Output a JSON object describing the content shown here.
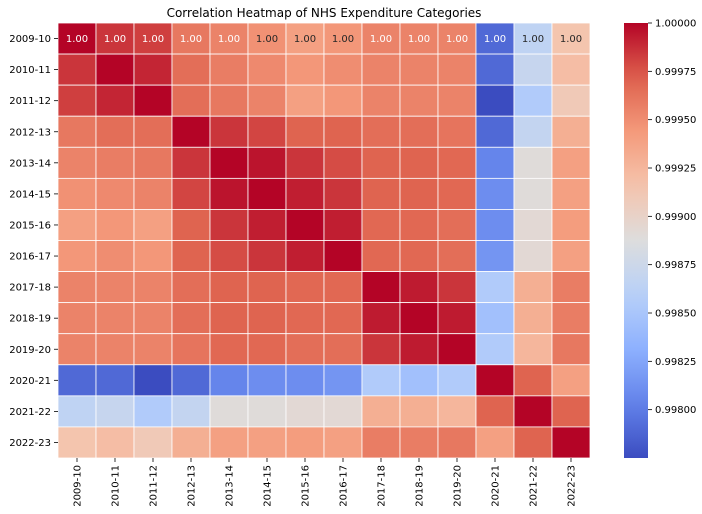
{
  "chart_data": {
    "type": "heatmap",
    "title": "Correlation Heatmap of NHS Expenditure Categories",
    "labels": [
      "2009-10",
      "2010-11",
      "2011-12",
      "2012-13",
      "2013-14",
      "2014-15",
      "2015-16",
      "2016-17",
      "2017-18",
      "2018-19",
      "2019-20",
      "2020-21",
      "2021-22",
      "2022-23"
    ],
    "matrix": [
      [
        1.0,
        0.99985,
        0.99982,
        0.9996,
        0.99955,
        0.99948,
        0.9994,
        0.99945,
        0.99955,
        0.99955,
        0.99955,
        0.9979,
        0.99865,
        0.99915
      ],
      [
        0.99985,
        1.0,
        0.9999,
        0.99965,
        0.99958,
        0.99952,
        0.99945,
        0.9995,
        0.99955,
        0.99955,
        0.99955,
        0.9979,
        0.9987,
        0.9992
      ],
      [
        0.99982,
        0.9999,
        1.0,
        0.99965,
        0.9996,
        0.99955,
        0.9994,
        0.99945,
        0.99955,
        0.99955,
        0.99955,
        0.99775,
        0.99855,
        0.9991
      ],
      [
        0.9996,
        0.99965,
        0.99965,
        1.0,
        0.99985,
        0.9998,
        0.9997,
        0.9997,
        0.99965,
        0.99965,
        0.99962,
        0.9979,
        0.99868,
        0.9993
      ],
      [
        0.99955,
        0.99958,
        0.9996,
        0.99985,
        1.0,
        0.99995,
        0.99985,
        0.99978,
        0.9997,
        0.9997,
        0.99968,
        0.99805,
        0.9989,
        0.9994
      ],
      [
        0.99948,
        0.99952,
        0.99955,
        0.9998,
        0.99995,
        1.0,
        0.99992,
        0.99985,
        0.9997,
        0.9997,
        0.99968,
        0.9981,
        0.9989,
        0.9994
      ],
      [
        0.9994,
        0.99945,
        0.9994,
        0.9997,
        0.99985,
        0.99992,
        1.0,
        0.99992,
        0.99968,
        0.99968,
        0.99965,
        0.9981,
        0.99893,
        0.99942
      ],
      [
        0.99945,
        0.9995,
        0.99945,
        0.9997,
        0.99978,
        0.99985,
        0.99992,
        1.0,
        0.99968,
        0.99968,
        0.99965,
        0.99815,
        0.99893,
        0.9994
      ],
      [
        0.99955,
        0.99955,
        0.99955,
        0.99965,
        0.9997,
        0.9997,
        0.99968,
        0.99968,
        1.0,
        0.99993,
        0.99985,
        0.99855,
        0.9993,
        0.99958
      ],
      [
        0.99955,
        0.99955,
        0.99955,
        0.99965,
        0.9997,
        0.9997,
        0.99968,
        0.99968,
        0.99993,
        1.0,
        0.99993,
        0.99845,
        0.9993,
        0.99958
      ],
      [
        0.99955,
        0.99955,
        0.99955,
        0.99962,
        0.99968,
        0.99968,
        0.99965,
        0.99965,
        0.99985,
        0.99993,
        1.0,
        0.99855,
        0.99925,
        0.9996
      ],
      [
        0.9979,
        0.9979,
        0.99775,
        0.9979,
        0.99805,
        0.9981,
        0.9981,
        0.99815,
        0.99855,
        0.99845,
        0.99855,
        1.0,
        0.9997,
        0.9994
      ],
      [
        0.99865,
        0.9987,
        0.99855,
        0.99868,
        0.9989,
        0.9989,
        0.99893,
        0.99893,
        0.9993,
        0.9993,
        0.99925,
        0.9997,
        1.0,
        0.9997
      ],
      [
        0.99915,
        0.9992,
        0.9991,
        0.9993,
        0.9994,
        0.9994,
        0.99942,
        0.9994,
        0.99958,
        0.99958,
        0.9996,
        0.9994,
        0.9997,
        1.0
      ]
    ],
    "row0_annotations": [
      "1.00",
      "1.00",
      "1.00",
      "1.00",
      "1.00",
      "1.00",
      "1.00",
      "1.00",
      "1.00",
      "1.00",
      "1.00",
      "1.00",
      "1.00",
      "1.00"
    ],
    "vmin": 0.99775,
    "vmax": 1.0,
    "colormap": "coolwarm",
    "colorbar_ticks": [
      "0.99800",
      "0.99825",
      "0.99850",
      "0.99875",
      "0.99900",
      "0.99925",
      "0.99950",
      "0.99975",
      "1.00000"
    ],
    "colorbar_tick_values": [
      0.998,
      0.99825,
      0.9985,
      0.99875,
      0.999,
      0.99925,
      0.9995,
      0.99975,
      1.0
    ],
    "grid_line_color": "#ffffff"
  }
}
